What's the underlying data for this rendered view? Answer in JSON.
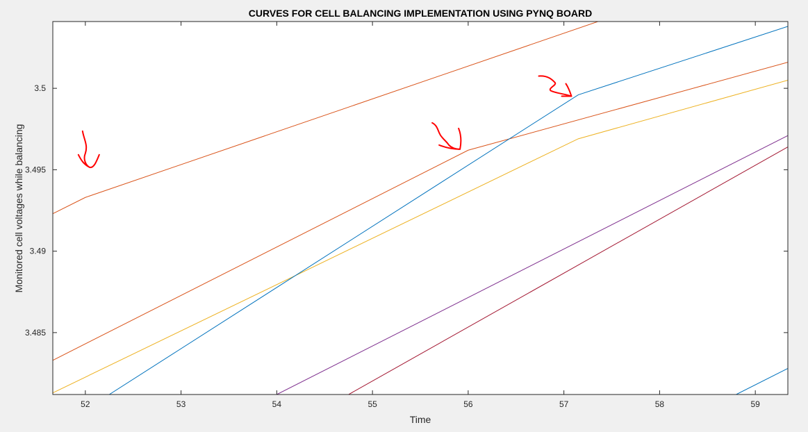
{
  "chart_data": {
    "type": "line",
    "title": "CURVES FOR CELL BALANCING IMPLEMENTATION USING PYNQ BOARD",
    "xlabel": "Time",
    "ylabel": "Monitored cell voltages while balancing",
    "xlim": [
      51.66,
      59.34
    ],
    "ylim": [
      3.4812,
      3.5041
    ],
    "x_ticks": [
      52,
      53,
      54,
      55,
      56,
      57,
      58,
      59
    ],
    "x_tick_labels": [
      "52",
      "53",
      "54",
      "55",
      "56",
      "57",
      "58",
      "59"
    ],
    "y_ticks": [
      3.485,
      3.49,
      3.495,
      3.5
    ],
    "y_tick_labels": [
      "3.485",
      "3.49",
      "3.495",
      "3.5"
    ],
    "grid": false,
    "legend": "none",
    "colors": {
      "figure_background": "#f0f0f0",
      "axes_background": "#ffffff",
      "axis": "#262626",
      "annotation_arrows": "#ff0000"
    },
    "series": [
      {
        "color": "#d95319",
        "x": [
          51.66,
          52.0,
          59.34
        ],
        "y": [
          3.4923,
          3.4933,
          3.5081
        ]
      },
      {
        "color": "#d95319",
        "x": [
          51.66,
          56.0,
          59.34
        ],
        "y": [
          3.4833,
          3.4962,
          3.5016
        ]
      },
      {
        "color": "#edb120",
        "x": [
          51.66,
          57.15,
          59.34
        ],
        "y": [
          3.4813,
          3.4969,
          3.5005
        ]
      },
      {
        "color": "#0072bd",
        "x": [
          52.25,
          57.15,
          59.34
        ],
        "y": [
          3.4812,
          3.4996,
          3.5038
        ]
      },
      {
        "color": "#7e2f8e",
        "x": [
          54.0,
          59.34
        ],
        "y": [
          3.4812,
          3.4971
        ]
      },
      {
        "color": "#a2142f",
        "x": [
          54.75,
          59.34
        ],
        "y": [
          3.4812,
          3.4964
        ]
      },
      {
        "color": "#0072bd",
        "x": [
          58.8,
          59.34
        ],
        "y": [
          3.4812,
          3.4828
        ]
      }
    ],
    "annotations": [
      {
        "type": "hand-drawn-arrow",
        "x": 52.0,
        "y": 3.4943
      },
      {
        "type": "hand-drawn-arrow",
        "x": 55.9,
        "y": 3.4966
      },
      {
        "type": "hand-drawn-arrow",
        "x": 57.05,
        "y": 3.4996
      }
    ]
  }
}
